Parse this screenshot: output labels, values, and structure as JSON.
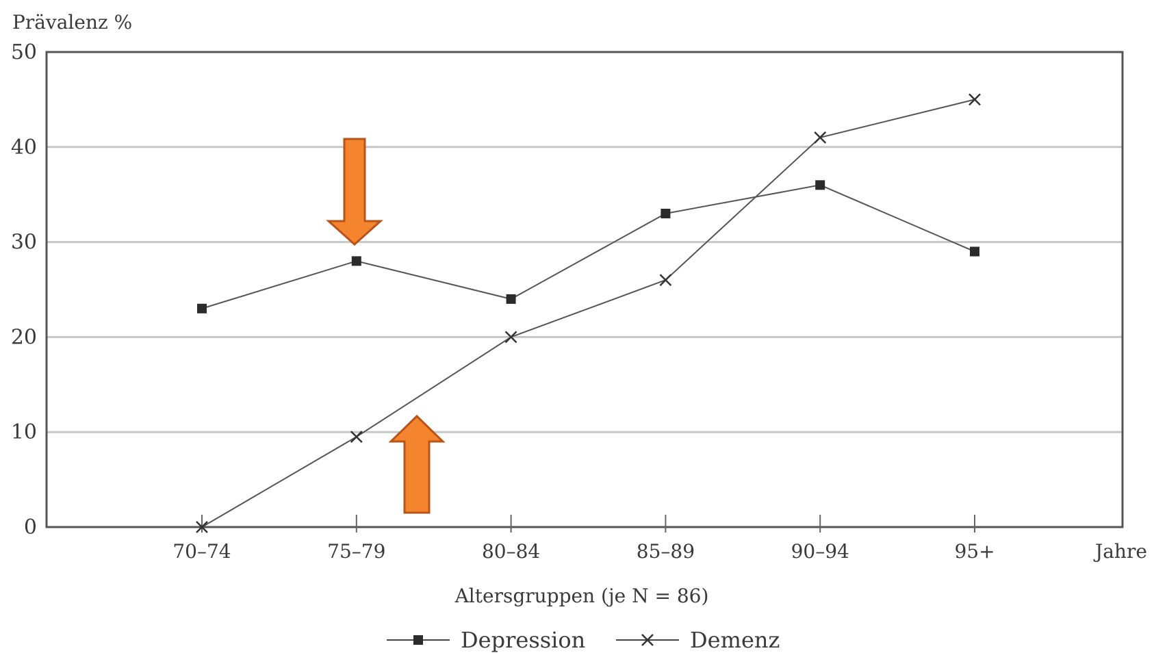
{
  "chart_data": {
    "type": "line",
    "ylabel": "Prävalenz %",
    "xlabel": "Altersgruppen (je N = 86)",
    "x_unit_label": "Jahre",
    "categories": [
      "70–74",
      "75–79",
      "80–84",
      "85–89",
      "90–94",
      "95+"
    ],
    "yticks": [
      0,
      10,
      20,
      30,
      40,
      50
    ],
    "ylim": [
      0,
      50
    ],
    "grid": true,
    "legend_position": "bottom",
    "series": [
      {
        "name": "Depression",
        "marker": "square",
        "values": [
          23,
          28,
          24,
          33,
          36,
          29
        ]
      },
      {
        "name": "Demenz",
        "marker": "x",
        "values": [
          0,
          9.5,
          20,
          26,
          41,
          45
        ]
      }
    ],
    "annotations": [
      {
        "type": "arrow-down",
        "color": "#f5842f",
        "points_to_category": "75–79"
      },
      {
        "type": "arrow-up",
        "color": "#f5842f"
      }
    ]
  }
}
